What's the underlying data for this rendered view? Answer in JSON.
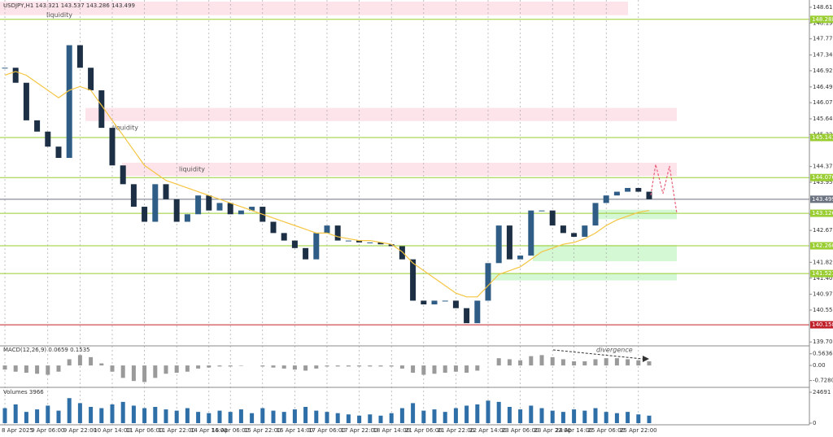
{
  "chart_data": [
    {
      "type": "candlestick",
      "title": "USDJPY,H1  143.321 143.537 143.286 143.499",
      "categories": [
        "8 Apr 2025",
        null,
        null,
        null,
        "9 Apr 06:00",
        null,
        null,
        "9 Apr 22:00",
        null,
        null,
        "10 Apr 14:00",
        null,
        null,
        "11 Apr 06:00",
        null,
        null,
        "11 Apr 22:00",
        null,
        null,
        "14 Apr 14:00",
        null,
        "15 Apr 06:00",
        null,
        null,
        "15 Apr 22:00",
        null,
        null,
        "16 Apr 14:00",
        null,
        null,
        "17 Apr 06:00",
        null,
        null,
        "17 Apr 22:00",
        null,
        null,
        "18 Apr 14:00",
        null,
        null,
        "21 Apr 06:00",
        null,
        null,
        "21 Apr 22:00",
        null,
        null,
        "22 Apr 14:00",
        null,
        null,
        "23 Apr 06:00",
        null,
        null,
        "23 Apr 22:00",
        null,
        "24 Apr 14:00",
        null,
        null,
        "25 Apr 06:00",
        null,
        null,
        "25 Apr 22:00",
        null
      ],
      "series": [
        {
          "name": "close",
          "up_color": "#2f5d86",
          "down_color": "#1c2f45",
          "values": [
            147.0,
            146.6,
            145.6,
            145.3,
            144.9,
            144.6,
            147.6,
            147.0,
            146.4,
            145.4,
            144.4,
            143.9,
            143.3,
            142.9,
            143.9,
            143.5,
            142.9,
            143.1,
            143.6,
            143.2,
            143.4,
            143.1,
            143.2,
            143.3,
            142.9,
            142.6,
            142.4,
            142.2,
            141.9,
            142.6,
            142.8,
            142.4,
            142.4,
            142.35,
            142.35,
            142.3,
            142.25,
            141.9,
            140.8,
            140.7,
            140.8,
            140.8,
            140.6,
            140.2,
            140.8,
            141.8,
            142.8,
            141.9,
            142.0,
            143.2,
            143.2,
            142.8,
            142.6,
            142.5,
            142.8,
            143.4,
            143.6,
            143.7,
            143.8,
            143.7,
            143.5
          ]
        },
        {
          "name": "moving-average",
          "color": "#f5c542",
          "values": [
            146.8,
            146.9,
            146.8,
            146.6,
            146.4,
            146.2,
            146.4,
            146.5,
            146.4,
            146.0,
            145.6,
            145.2,
            144.8,
            144.4,
            144.2,
            144.0,
            143.9,
            143.8,
            143.7,
            143.6,
            143.5,
            143.4,
            143.3,
            143.2,
            143.1,
            143.0,
            142.9,
            142.8,
            142.7,
            142.6,
            142.6,
            142.5,
            142.45,
            142.4,
            142.4,
            142.35,
            142.3,
            142.1,
            141.8,
            141.6,
            141.4,
            141.2,
            141.0,
            140.9,
            140.9,
            141.2,
            141.5,
            141.6,
            141.7,
            141.9,
            142.1,
            142.2,
            142.3,
            142.35,
            142.45,
            142.6,
            142.8,
            142.95,
            143.05,
            143.15,
            143.2
          ]
        }
      ],
      "ylim": [
        139.64,
        148.76
      ],
      "yticks": [
        {
          "value": 148.61,
          "label": "148.610"
        },
        {
          "value": 148.19,
          "label": "148.190"
        },
        {
          "value": 147.77,
          "label": "147.770"
        },
        {
          "value": 147.34,
          "label": "147.340"
        },
        {
          "value": 146.92,
          "label": "146.920"
        },
        {
          "value": 146.49,
          "label": "146.490"
        },
        {
          "value": 146.07,
          "label": "146.070"
        },
        {
          "value": 145.64,
          "label": "145.640"
        },
        {
          "value": 145.22,
          "label": "145.220"
        },
        {
          "value": 144.37,
          "label": "144.370"
        },
        {
          "value": 143.95,
          "label": "143.950"
        },
        {
          "value": 143.1,
          "label": "143.100"
        },
        {
          "value": 142.67,
          "label": "142.670"
        },
        {
          "value": 141.82,
          "label": "141.820"
        },
        {
          "value": 141.4,
          "label": "141.400"
        },
        {
          "value": 140.97,
          "label": "140.970"
        },
        {
          "value": 140.55,
          "label": "140.550"
        },
        {
          "value": 139.7,
          "label": "139.700"
        }
      ],
      "levels": [
        {
          "price": 148.288,
          "color": "#9acd32"
        },
        {
          "price": 145.143,
          "color": "#9acd32"
        },
        {
          "price": 144.076,
          "color": "#9acd32"
        },
        {
          "price": 143.499,
          "color": "#6b7280"
        },
        {
          "price": 143.126,
          "color": "#9acd32"
        },
        {
          "price": {
            "value": 142.26,
            "label": "142.260"
          },
          "color": "#9acd32"
        },
        {
          "price": 141.521,
          "color": "#9acd32"
        },
        {
          "price": 140.158,
          "color": "#c0202a"
        }
      ],
      "zones": [
        {
          "top": 148.76,
          "bottom": 148.4,
          "color": "#fde4ea"
        },
        {
          "top": 145.93,
          "bottom": 145.58,
          "color": "#fde4ea"
        },
        {
          "top": 144.47,
          "bottom": 144.12,
          "color": "#fde4ea"
        },
        {
          "top": 143.22,
          "bottom": 142.97,
          "color": "#d4f7d4"
        },
        {
          "top": 142.28,
          "bottom": 141.85,
          "color": "#d4f7d4"
        },
        {
          "top": 141.53,
          "bottom": 141.34,
          "color": "#d4f7d4"
        }
      ],
      "annotations": [
        {
          "text": "liquidity",
          "price": 148.4
        },
        {
          "text": "liquidity",
          "price": 145.4
        },
        {
          "text": "liquidity",
          "price": 144.3
        }
      ]
    },
    {
      "type": "bar",
      "title": "MACD(12,26,9) 0.0659 0.1535",
      "color": "#9a9a9a",
      "values": [
        -0.2,
        -0.3,
        -0.35,
        -0.4,
        -0.45,
        -0.3,
        0.3,
        0.5,
        0.4,
        0.1,
        -0.3,
        -0.6,
        -0.75,
        -0.8,
        -0.6,
        -0.4,
        -0.35,
        -0.3,
        -0.15,
        -0.1,
        -0.05,
        -0.05,
        -0.02,
        0.0,
        -0.05,
        -0.1,
        -0.15,
        -0.2,
        -0.25,
        -0.15,
        -0.05,
        -0.05,
        -0.05,
        -0.05,
        -0.05,
        -0.05,
        -0.05,
        -0.15,
        -0.35,
        -0.45,
        -0.4,
        -0.35,
        -0.3,
        -0.35,
        -0.25,
        0.0,
        0.35,
        0.3,
        0.25,
        0.45,
        0.5,
        0.4,
        0.3,
        0.2,
        0.2,
        0.3,
        0.35,
        0.35,
        0.3,
        0.25,
        0.2
      ],
      "ylim": [
        -0.9,
        0.75
      ],
      "yticks": [
        0.5636,
        {
          "value": 0,
          "label": "0.00"
        },
        {
          "value": -0.728,
          "label": "-0.7280"
        }
      ],
      "annotation": "divergence"
    },
    {
      "type": "bar",
      "title": "Volumes 3966",
      "color": "#2f6fa8",
      "values": [
        12000,
        15000,
        9000,
        11000,
        14000,
        10000,
        20000,
        16000,
        13000,
        12000,
        15000,
        17000,
        14000,
        12000,
        13000,
        11000,
        10000,
        12000,
        9000,
        8000,
        10000,
        9000,
        11000,
        8000,
        12000,
        10000,
        9000,
        11000,
        13000,
        10000,
        9000,
        8000,
        7000,
        6000,
        7000,
        6000,
        8000,
        12000,
        16000,
        10000,
        11000,
        9000,
        12000,
        14000,
        15000,
        18000,
        17000,
        13000,
        11000,
        14000,
        12000,
        10000,
        9000,
        11000,
        10000,
        12000,
        9000,
        8000,
        9000,
        7000,
        6000
      ],
      "ylim": [
        0,
        26000
      ],
      "yticks": [
        24691,
        0
      ]
    }
  ]
}
